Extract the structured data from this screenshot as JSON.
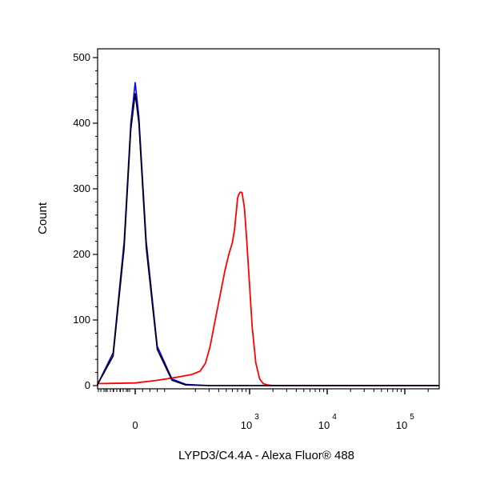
{
  "chart_data": {
    "type": "line",
    "title": "",
    "xlabel": "LYPD3/C4.4A - Alexa Fluor® 488",
    "ylabel": "Count",
    "x_scale": "biexponential",
    "ylim": [
      0,
      510
    ],
    "x_ticks": [
      {
        "label": "0",
        "sup": "",
        "value": 0
      },
      {
        "label": "10",
        "sup": "3",
        "value": 1000
      },
      {
        "label": "10",
        "sup": "4",
        "value": 10000
      },
      {
        "label": "10",
        "sup": "5",
        "value": 100000
      }
    ],
    "y_ticks": [
      0,
      100,
      200,
      300,
      400,
      500
    ],
    "grid": false,
    "legend": "none",
    "series": [
      {
        "color": "#ff0000",
        "x": [
          -300,
          -150,
          0,
          60,
          120,
          180,
          230,
          270,
          310,
          360,
          420,
          480,
          540,
          600,
          640,
          670,
          700,
          730,
          760,
          800,
          860,
          920,
          990,
          1080,
          1200,
          1350,
          1500,
          1700,
          2000,
          3000,
          10000,
          100000,
          300000
        ],
        "y": [
          3,
          3,
          4,
          8,
          13,
          17,
          22,
          34,
          60,
          100,
          140,
          175,
          200,
          218,
          238,
          262,
          286,
          292,
          295,
          294,
          270,
          220,
          160,
          90,
          35,
          10,
          3,
          1,
          0,
          0,
          0,
          0,
          0
        ]
      },
      {
        "color": "#0000ff",
        "x": [
          -300,
          -120,
          -60,
          -30,
          -12,
          0,
          10,
          30,
          60,
          100,
          150,
          300,
          1000,
          100000,
          300000
        ],
        "y": [
          0,
          2,
          50,
          220,
          400,
          462,
          410,
          220,
          60,
          10,
          2,
          0,
          0,
          0,
          0
        ]
      },
      {
        "color": "#000000",
        "x": [
          -300,
          -120,
          -60,
          -30,
          -12,
          0,
          10,
          30,
          60,
          100,
          150,
          300,
          1000,
          100000,
          300000
        ],
        "y": [
          0,
          2,
          45,
          210,
          390,
          445,
          400,
          210,
          55,
          8,
          1,
          0,
          0,
          0,
          0
        ]
      }
    ]
  }
}
